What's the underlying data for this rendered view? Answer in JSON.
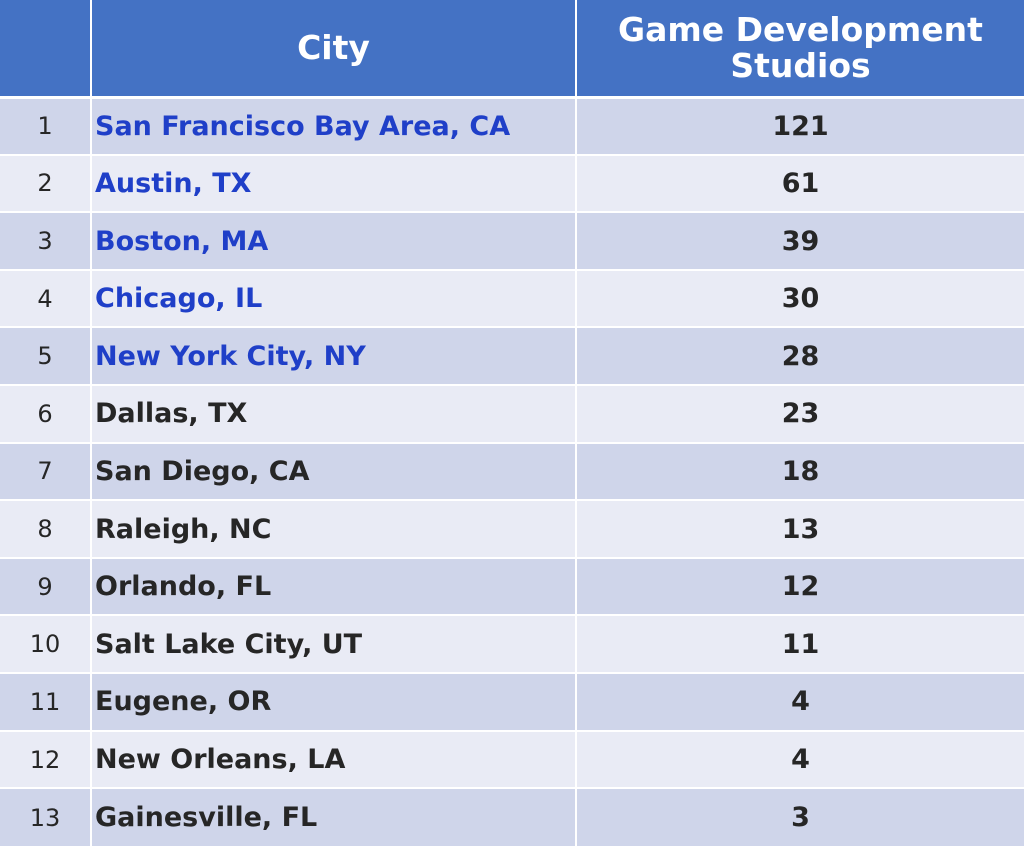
{
  "chart_data": {
    "type": "table",
    "columns": [
      "",
      "City",
      "Game Development Studios"
    ],
    "header_lines": {
      "city": "City",
      "count_line1": "Game Development",
      "count_line2": "Studios"
    },
    "highlight_color": "#1f3fc8",
    "header_color": "#4472c4",
    "rows": [
      {
        "rank": "1",
        "city": "San Francisco Bay Area, CA",
        "count": 121,
        "highlight": true
      },
      {
        "rank": "2",
        "city": "Austin, TX",
        "count": 61,
        "highlight": true
      },
      {
        "rank": "3",
        "city": "Boston, MA",
        "count": 39,
        "highlight": true
      },
      {
        "rank": "4",
        "city": "Chicago, IL",
        "count": 30,
        "highlight": true
      },
      {
        "rank": "5",
        "city": "New York City, NY",
        "count": 28,
        "highlight": true
      },
      {
        "rank": "6",
        "city": "Dallas, TX",
        "count": 23,
        "highlight": false
      },
      {
        "rank": "7",
        "city": "San Diego, CA",
        "count": 18,
        "highlight": false
      },
      {
        "rank": "8",
        "city": "Raleigh, NC",
        "count": 13,
        "highlight": false
      },
      {
        "rank": "9",
        "city": "Orlando, FL",
        "count": 12,
        "highlight": false
      },
      {
        "rank": "10",
        "city": "Salt Lake City, UT",
        "count": 11,
        "highlight": false
      },
      {
        "rank": "11",
        "city": "Eugene, OR",
        "count": 4,
        "highlight": false
      },
      {
        "rank": "12",
        "city": "New Orleans, LA",
        "count": 4,
        "highlight": false
      },
      {
        "rank": "13",
        "city": "Gainesville, FL",
        "count": 3,
        "highlight": false
      }
    ]
  }
}
